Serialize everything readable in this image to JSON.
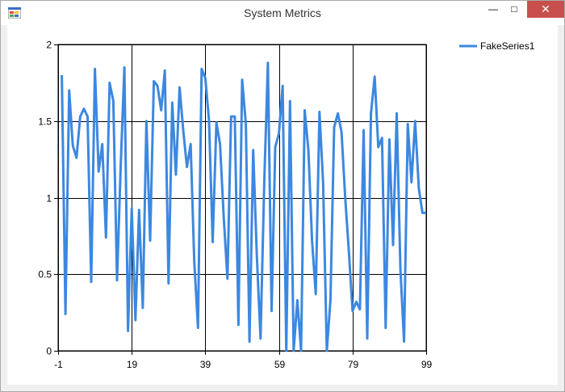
{
  "window": {
    "title": "System Metrics"
  },
  "chart_data": {
    "type": "line",
    "title": "",
    "xlabel": "",
    "ylabel": "",
    "xlim": [
      -1,
      99
    ],
    "ylim": [
      0,
      2
    ],
    "grid": true,
    "legend_position": "top-right",
    "x_ticks": [
      -1,
      19,
      39,
      59,
      79,
      99
    ],
    "y_ticks": [
      0,
      0.5,
      1,
      1.5,
      2
    ],
    "x_tick_labels": [
      "-1",
      "19",
      "39",
      "59",
      "79",
      "99"
    ],
    "y_tick_labels": [
      "0",
      "0.5",
      "1",
      "1.5",
      "2"
    ],
    "series": [
      {
        "name": "FakeSeries1",
        "color": "#3c88e0",
        "x": [
          0,
          1,
          2,
          3,
          4,
          5,
          6,
          7,
          8,
          9,
          10,
          11,
          12,
          13,
          14,
          15,
          16,
          17,
          18,
          19,
          20,
          21,
          22,
          23,
          24,
          25,
          26,
          27,
          28,
          29,
          30,
          31,
          32,
          33,
          34,
          35,
          36,
          37,
          38,
          39,
          40,
          41,
          42,
          43,
          44,
          45,
          46,
          47,
          48,
          49,
          50,
          51,
          52,
          53,
          54,
          55,
          56,
          57,
          58,
          59,
          60,
          61,
          62,
          63,
          64,
          65,
          66,
          67,
          68,
          69,
          70,
          71,
          72,
          73,
          74,
          75,
          76,
          77,
          78,
          79,
          80,
          81,
          82,
          83,
          84,
          85,
          86,
          87,
          88,
          89,
          90,
          91,
          92,
          93,
          94,
          95,
          96,
          97,
          98,
          99
        ],
        "values": [
          1.8,
          0.24,
          1.7,
          1.34,
          1.26,
          1.53,
          1.58,
          1.53,
          0.45,
          1.84,
          1.17,
          1.35,
          0.74,
          1.75,
          1.63,
          0.46,
          1.2,
          1.85,
          0.13,
          0.93,
          0.2,
          0.92,
          0.28,
          1.5,
          0.72,
          1.76,
          1.73,
          1.57,
          1.83,
          0.44,
          1.62,
          1.15,
          1.72,
          1.44,
          1.2,
          1.35,
          0.58,
          0.15,
          1.84,
          1.78,
          1.5,
          0.71,
          1.49,
          1.35,
          0.87,
          0.47,
          1.53,
          1.53,
          0.17,
          1.77,
          1.48,
          0.06,
          1.31,
          0.62,
          0.08,
          1.1,
          1.88,
          0.26,
          1.33,
          1.42,
          1.73,
          0.0,
          1.63,
          0.0,
          0.33,
          0.0,
          1.57,
          1.31,
          0.72,
          0.37,
          1.56,
          1.1,
          0.0,
          0.33,
          1.46,
          1.55,
          1.43,
          1.0,
          0.65,
          0.26,
          0.32,
          0.27,
          1.44,
          0.08,
          1.55,
          1.79,
          1.33,
          1.39,
          0.15,
          1.38,
          0.69,
          1.55,
          0.53,
          0.06,
          1.48,
          1.1,
          1.5,
          1.06,
          0.9,
          0.9
        ]
      }
    ]
  }
}
